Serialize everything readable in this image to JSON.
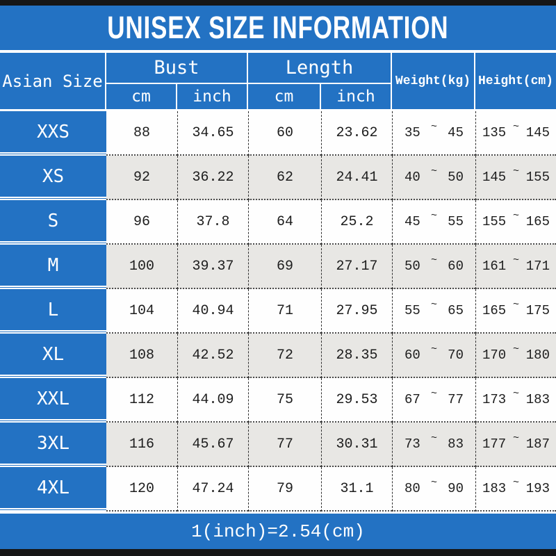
{
  "title": "UNISEX SIZE INFORMATION",
  "footer_note": "1(inch)=2.54(cm)",
  "colors": {
    "accent_blue": "#2372c3",
    "row_alt": "#e8e7e4",
    "bar_black": "#161616"
  },
  "table": {
    "corner_header": "Asian Size",
    "group_headers": {
      "bust": "Bust",
      "length": "Length"
    },
    "sub_headers": {
      "bust_cm": "cm",
      "bust_inch": "inch",
      "length_cm": "cm",
      "length_inch": "inch"
    },
    "span_headers": {
      "weight": "Weight(kg)",
      "height": "Height(cm)"
    },
    "tilde": "~",
    "rows": [
      {
        "size": "XXS",
        "bust_cm": "88",
        "bust_inch": "34.65",
        "length_cm": "60",
        "length_inch": "23.62",
        "weight_min": "35",
        "weight_max": "45",
        "height_min": "135",
        "height_max": "145"
      },
      {
        "size": "XS",
        "bust_cm": "92",
        "bust_inch": "36.22",
        "length_cm": "62",
        "length_inch": "24.41",
        "weight_min": "40",
        "weight_max": "50",
        "height_min": "145",
        "height_max": "155"
      },
      {
        "size": "S",
        "bust_cm": "96",
        "bust_inch": "37.8",
        "length_cm": "64",
        "length_inch": "25.2",
        "weight_min": "45",
        "weight_max": "55",
        "height_min": "155",
        "height_max": "165"
      },
      {
        "size": "M",
        "bust_cm": "100",
        "bust_inch": "39.37",
        "length_cm": "69",
        "length_inch": "27.17",
        "weight_min": "50",
        "weight_max": "60",
        "height_min": "161",
        "height_max": "171"
      },
      {
        "size": "L",
        "bust_cm": "104",
        "bust_inch": "40.94",
        "length_cm": "71",
        "length_inch": "27.95",
        "weight_min": "55",
        "weight_max": "65",
        "height_min": "165",
        "height_max": "175"
      },
      {
        "size": "XL",
        "bust_cm": "108",
        "bust_inch": "42.52",
        "length_cm": "72",
        "length_inch": "28.35",
        "weight_min": "60",
        "weight_max": "70",
        "height_min": "170",
        "height_max": "180"
      },
      {
        "size": "XXL",
        "bust_cm": "112",
        "bust_inch": "44.09",
        "length_cm": "75",
        "length_inch": "29.53",
        "weight_min": "67",
        "weight_max": "77",
        "height_min": "173",
        "height_max": "183"
      },
      {
        "size": "3XL",
        "bust_cm": "116",
        "bust_inch": "45.67",
        "length_cm": "77",
        "length_inch": "30.31",
        "weight_min": "73",
        "weight_max": "83",
        "height_min": "177",
        "height_max": "187"
      },
      {
        "size": "4XL",
        "bust_cm": "120",
        "bust_inch": "47.24",
        "length_cm": "79",
        "length_inch": "31.1",
        "weight_min": "80",
        "weight_max": "90",
        "height_min": "183",
        "height_max": "193"
      }
    ]
  }
}
